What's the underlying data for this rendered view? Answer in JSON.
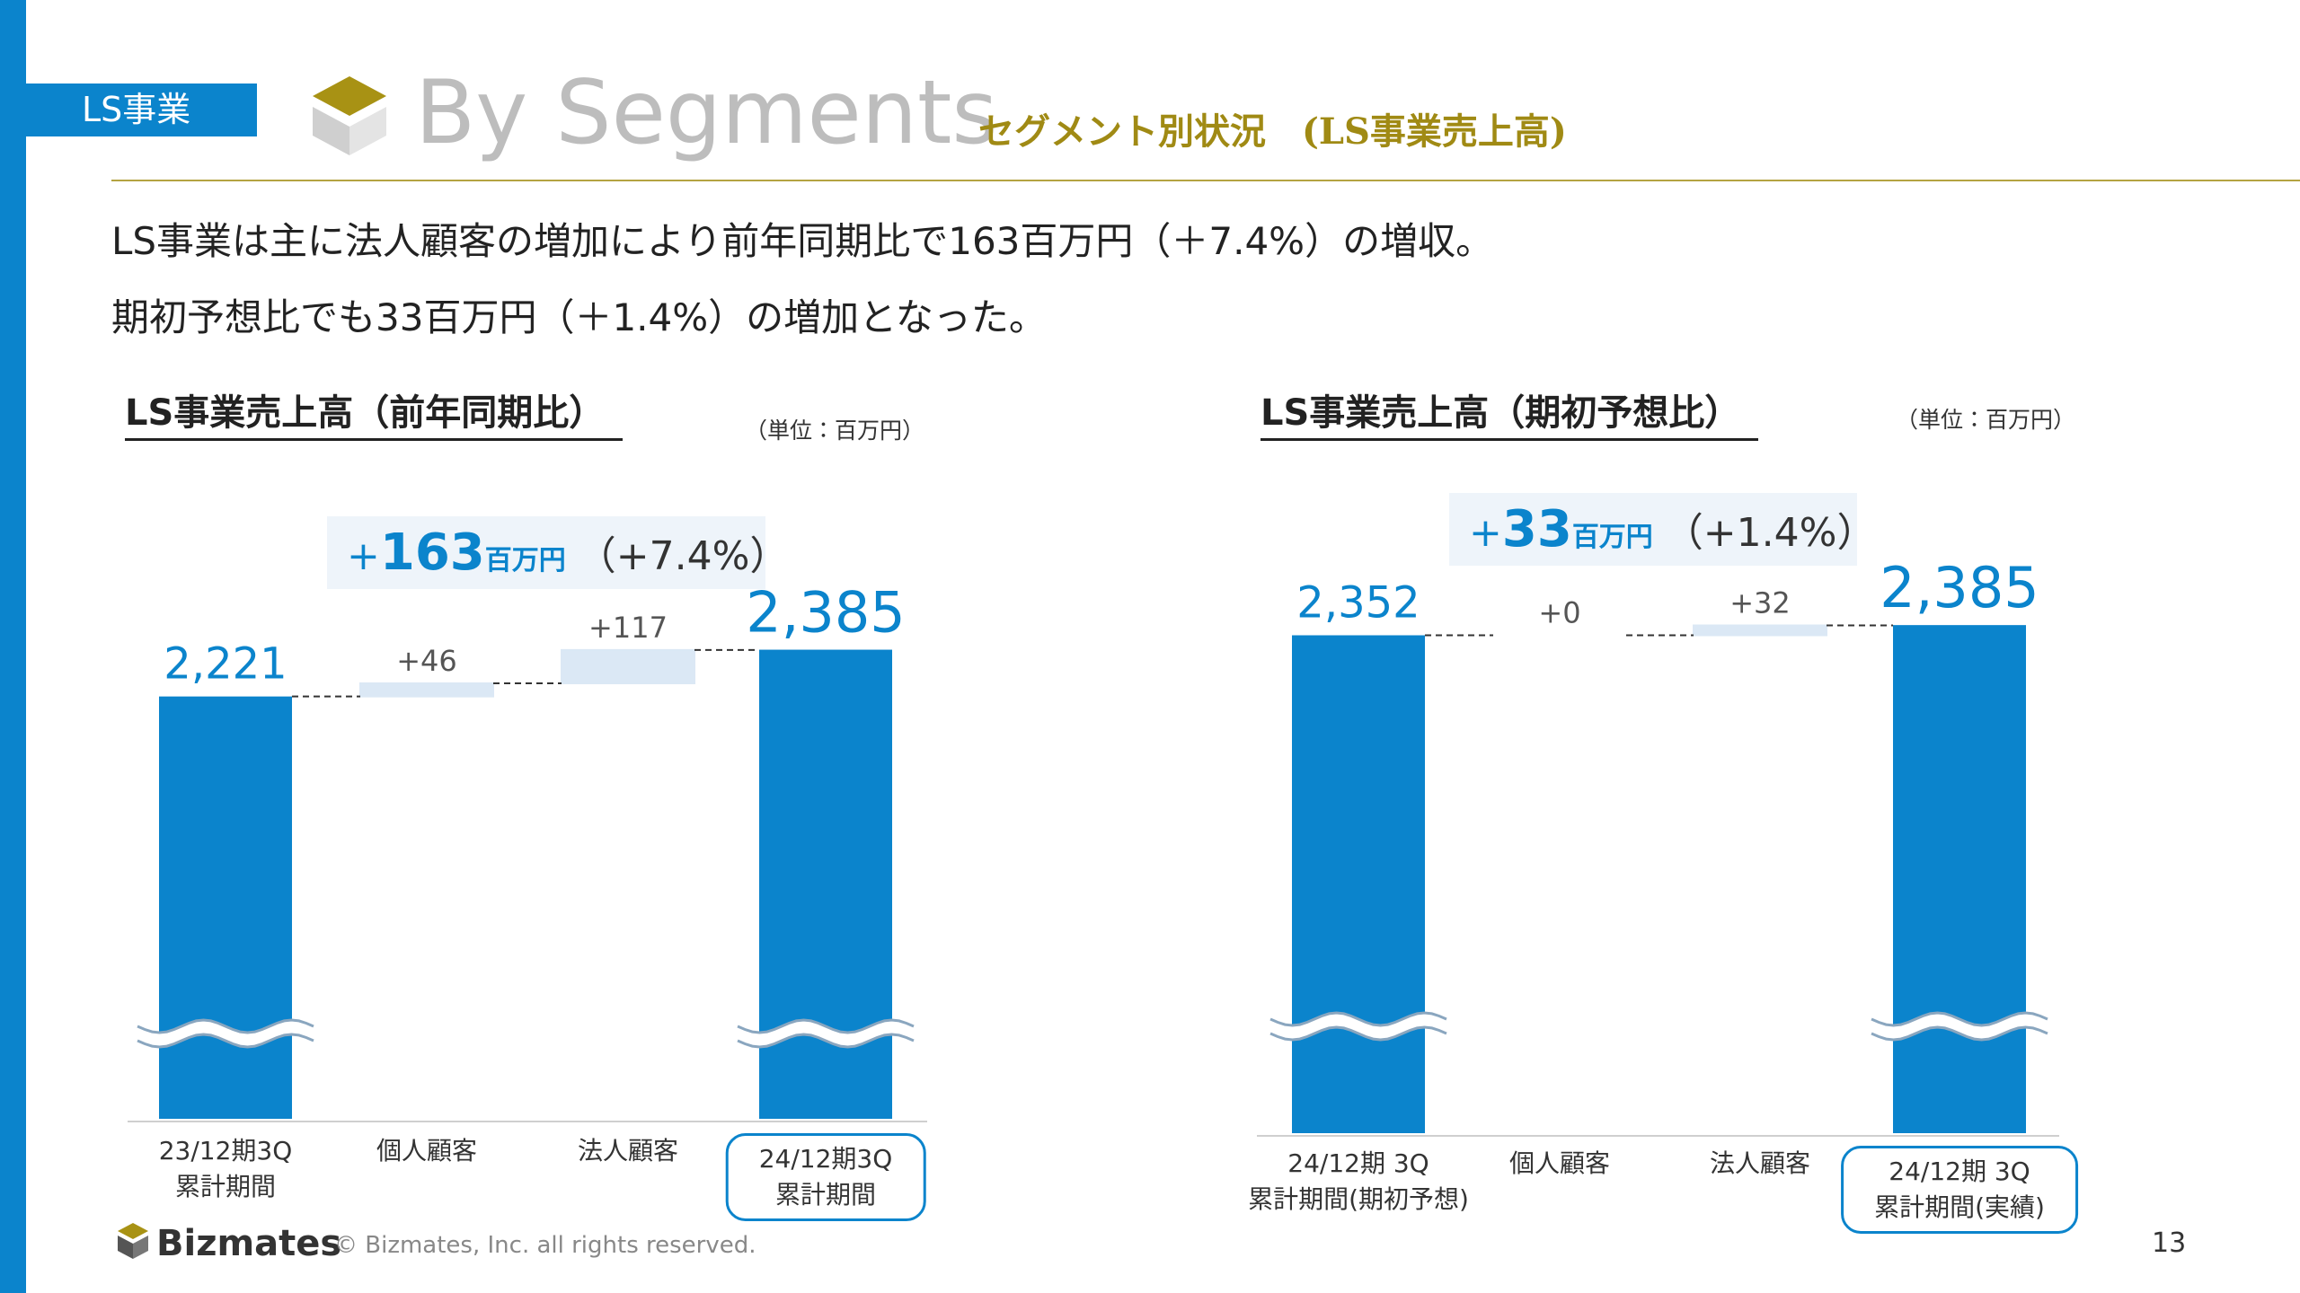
{
  "header": {
    "section": "LS事業",
    "title": "By Segments",
    "subtitle": "セグメント別状況　(LS事業売上高)"
  },
  "summary": [
    "LS事業は主に法人顧客の増加により前年同期比で163百万円（＋7.4%）の増収。",
    "期初予想比でも33百万円（＋1.4%）の増加となった。"
  ],
  "chart_data": [
    {
      "type": "waterfall",
      "title": "LS事業売上高（前年同期比）",
      "unit_note": "（単位：百万円）",
      "annotation": {
        "sign": "+",
        "amount": "163",
        "unit": "百万円",
        "rate": "（+7.4%）"
      },
      "categories": [
        "23/12期3Q\n累計期間",
        "個人顧客",
        "法人顧客",
        "24/12期3Q\n累計期間"
      ],
      "values": [
        2221,
        46,
        117,
        2385
      ],
      "value_labels": [
        "2,221",
        "+46",
        "+117",
        "2,385"
      ],
      "color": "#0b84cc",
      "delta_color": "#dbe8f5",
      "ylim": [
        740,
        2900
      ]
    },
    {
      "type": "waterfall",
      "title": "LS事業売上高（期初予想比）",
      "unit_note": "（単位：百万円）",
      "annotation": {
        "sign": "+",
        "amount": "33",
        "unit": "百万円",
        "rate": "（+1.4%）"
      },
      "categories": [
        "24/12期 3Q\n累計期間(期初予想)",
        "個人顧客",
        "法人顧客",
        "24/12期 3Q\n累計期間(実績)"
      ],
      "values": [
        2352,
        0,
        32,
        2385
      ],
      "value_labels": [
        "2,352",
        "+0",
        "+32",
        "2,385"
      ],
      "color": "#0b84cc",
      "delta_color": "#dbe8f5",
      "ylim": [
        740,
        2900
      ]
    }
  ],
  "footer": {
    "brand": "Bizmates",
    "copyright": "© Bizmates, Inc. all rights reserved.",
    "page": 13
  }
}
